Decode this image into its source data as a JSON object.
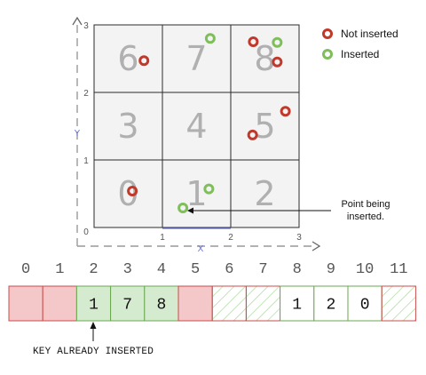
{
  "grid": {
    "x_ticks": [
      "1",
      "2",
      "3"
    ],
    "y_ticks": [
      "3",
      "2",
      "1"
    ],
    "origin_label": "0",
    "x_label": "X",
    "y_label": "Y",
    "cells": [
      {
        "col": 0,
        "row": 2,
        "num": "6"
      },
      {
        "col": 1,
        "row": 2,
        "num": "7"
      },
      {
        "col": 2,
        "row": 2,
        "num": "8"
      },
      {
        "col": 0,
        "row": 1,
        "num": "3"
      },
      {
        "col": 1,
        "row": 1,
        "num": "4"
      },
      {
        "col": 2,
        "row": 1,
        "num": "5"
      },
      {
        "col": 0,
        "row": 0,
        "num": "0"
      },
      {
        "col": 1,
        "row": 0,
        "num": "1"
      },
      {
        "col": 2,
        "row": 0,
        "num": "2"
      }
    ],
    "points": [
      {
        "x": 0.73,
        "y": 2.47,
        "status": "not_inserted"
      },
      {
        "x": 1.7,
        "y": 2.8,
        "status": "inserted"
      },
      {
        "x": 2.33,
        "y": 2.75,
        "status": "not_inserted"
      },
      {
        "x": 2.68,
        "y": 2.74,
        "status": "inserted"
      },
      {
        "x": 2.68,
        "y": 2.45,
        "status": "not_inserted"
      },
      {
        "x": 2.8,
        "y": 1.72,
        "status": "not_inserted"
      },
      {
        "x": 2.32,
        "y": 1.37,
        "status": "not_inserted"
      },
      {
        "x": 0.56,
        "y": 0.54,
        "status": "not_inserted"
      },
      {
        "x": 1.68,
        "y": 0.57,
        "status": "inserted"
      },
      {
        "x": 1.3,
        "y": 0.29,
        "status": "inserted",
        "being_inserted": true
      }
    ]
  },
  "legend": {
    "not_inserted": "Not inserted",
    "inserted": "Inserted"
  },
  "annotation": {
    "line1": "Point being",
    "line2": "inserted."
  },
  "array": {
    "indices": [
      "0",
      "1",
      "2",
      "3",
      "4",
      "5",
      "6",
      "7",
      "8",
      "9",
      "10",
      "11"
    ],
    "cells": [
      {
        "state": "red",
        "key": ""
      },
      {
        "state": "red",
        "key": ""
      },
      {
        "state": "green",
        "key": "1"
      },
      {
        "state": "green",
        "key": "7"
      },
      {
        "state": "green",
        "key": "8"
      },
      {
        "state": "red",
        "key": ""
      },
      {
        "state": "hatched",
        "key": ""
      },
      {
        "state": "hatched",
        "key": ""
      },
      {
        "state": "empty",
        "key": "1"
      },
      {
        "state": "empty",
        "key": "2"
      },
      {
        "state": "empty",
        "key": "0"
      },
      {
        "state": "hatched",
        "key": ""
      }
    ]
  },
  "caption": "KEY ALREADY INSERTED",
  "colors": {
    "not_inserted": "#c0392b",
    "inserted": "#7fbf5a",
    "red_fill": "#f4c7c9",
    "red_border": "#c94d4d",
    "green_fill": "#d5ebcf",
    "green_border": "#6aa84f",
    "hatch": "#a8d99a",
    "cell_fill": "#f3f3f3",
    "axis_gray": "#999999",
    "axis_blue": "#6b73d6"
  }
}
